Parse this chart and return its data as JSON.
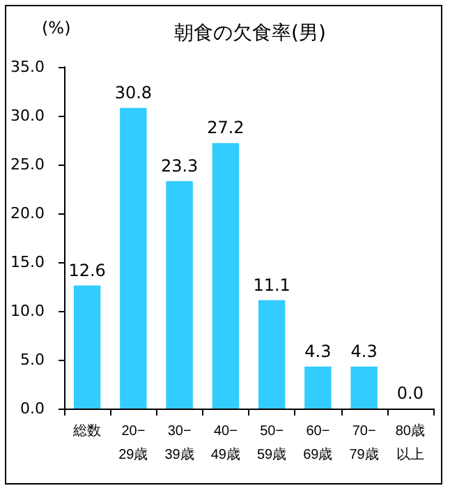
{
  "chart_data": {
    "type": "bar",
    "title": "朝食の欠食率(男)",
    "ylabel": "(%)",
    "categories": [
      "総数",
      "20−29歳",
      "30−39歳",
      "40−49歳",
      "50−59歳",
      "60−69歳",
      "70−79歳",
      "80歳以上"
    ],
    "values": [
      12.6,
      30.8,
      23.3,
      27.2,
      11.1,
      4.3,
      4.3,
      0.0
    ],
    "value_labels": [
      "12.6",
      "30.8",
      "23.3",
      "27.2",
      "11.1",
      "4.3",
      "4.3",
      "0.0"
    ],
    "color": "#33ccff",
    "ylim": [
      0,
      35
    ],
    "yticks": [
      {
        "value": 0,
        "label": "0.0"
      },
      {
        "value": 5,
        "label": "5.0"
      },
      {
        "value": 10,
        "label": "10.0"
      },
      {
        "value": 15,
        "label": "15.0"
      },
      {
        "value": 20,
        "label": "20.0"
      },
      {
        "value": 25,
        "label": "25.0"
      },
      {
        "value": 30,
        "label": "30.0"
      },
      {
        "value": 35,
        "label": "35.0"
      }
    ],
    "grid": false
  }
}
